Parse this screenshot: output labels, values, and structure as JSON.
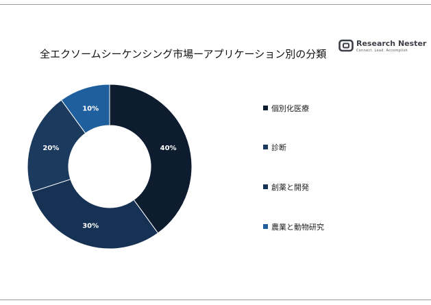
{
  "logo": {
    "icon": "research-nester-logo-icon",
    "name": "Research Nester",
    "tagline": "Connect. Lead. Accomplish"
  },
  "chart_data": {
    "type": "pie",
    "title": "全エクソームシーケンシング市場ーアプリケーション別の分類",
    "donut": true,
    "legend_position": "right",
    "categories": [
      "個別化医療",
      "診断",
      "創薬と開発",
      "農業と動物研究"
    ],
    "values": [
      40,
      20,
      30,
      10
    ],
    "value_labels": [
      "40%",
      "20%",
      "30%",
      "10%"
    ],
    "colors": [
      "#0e1c2f",
      "#1b3a5e",
      "#153255",
      "#1f5f9e"
    ]
  }
}
